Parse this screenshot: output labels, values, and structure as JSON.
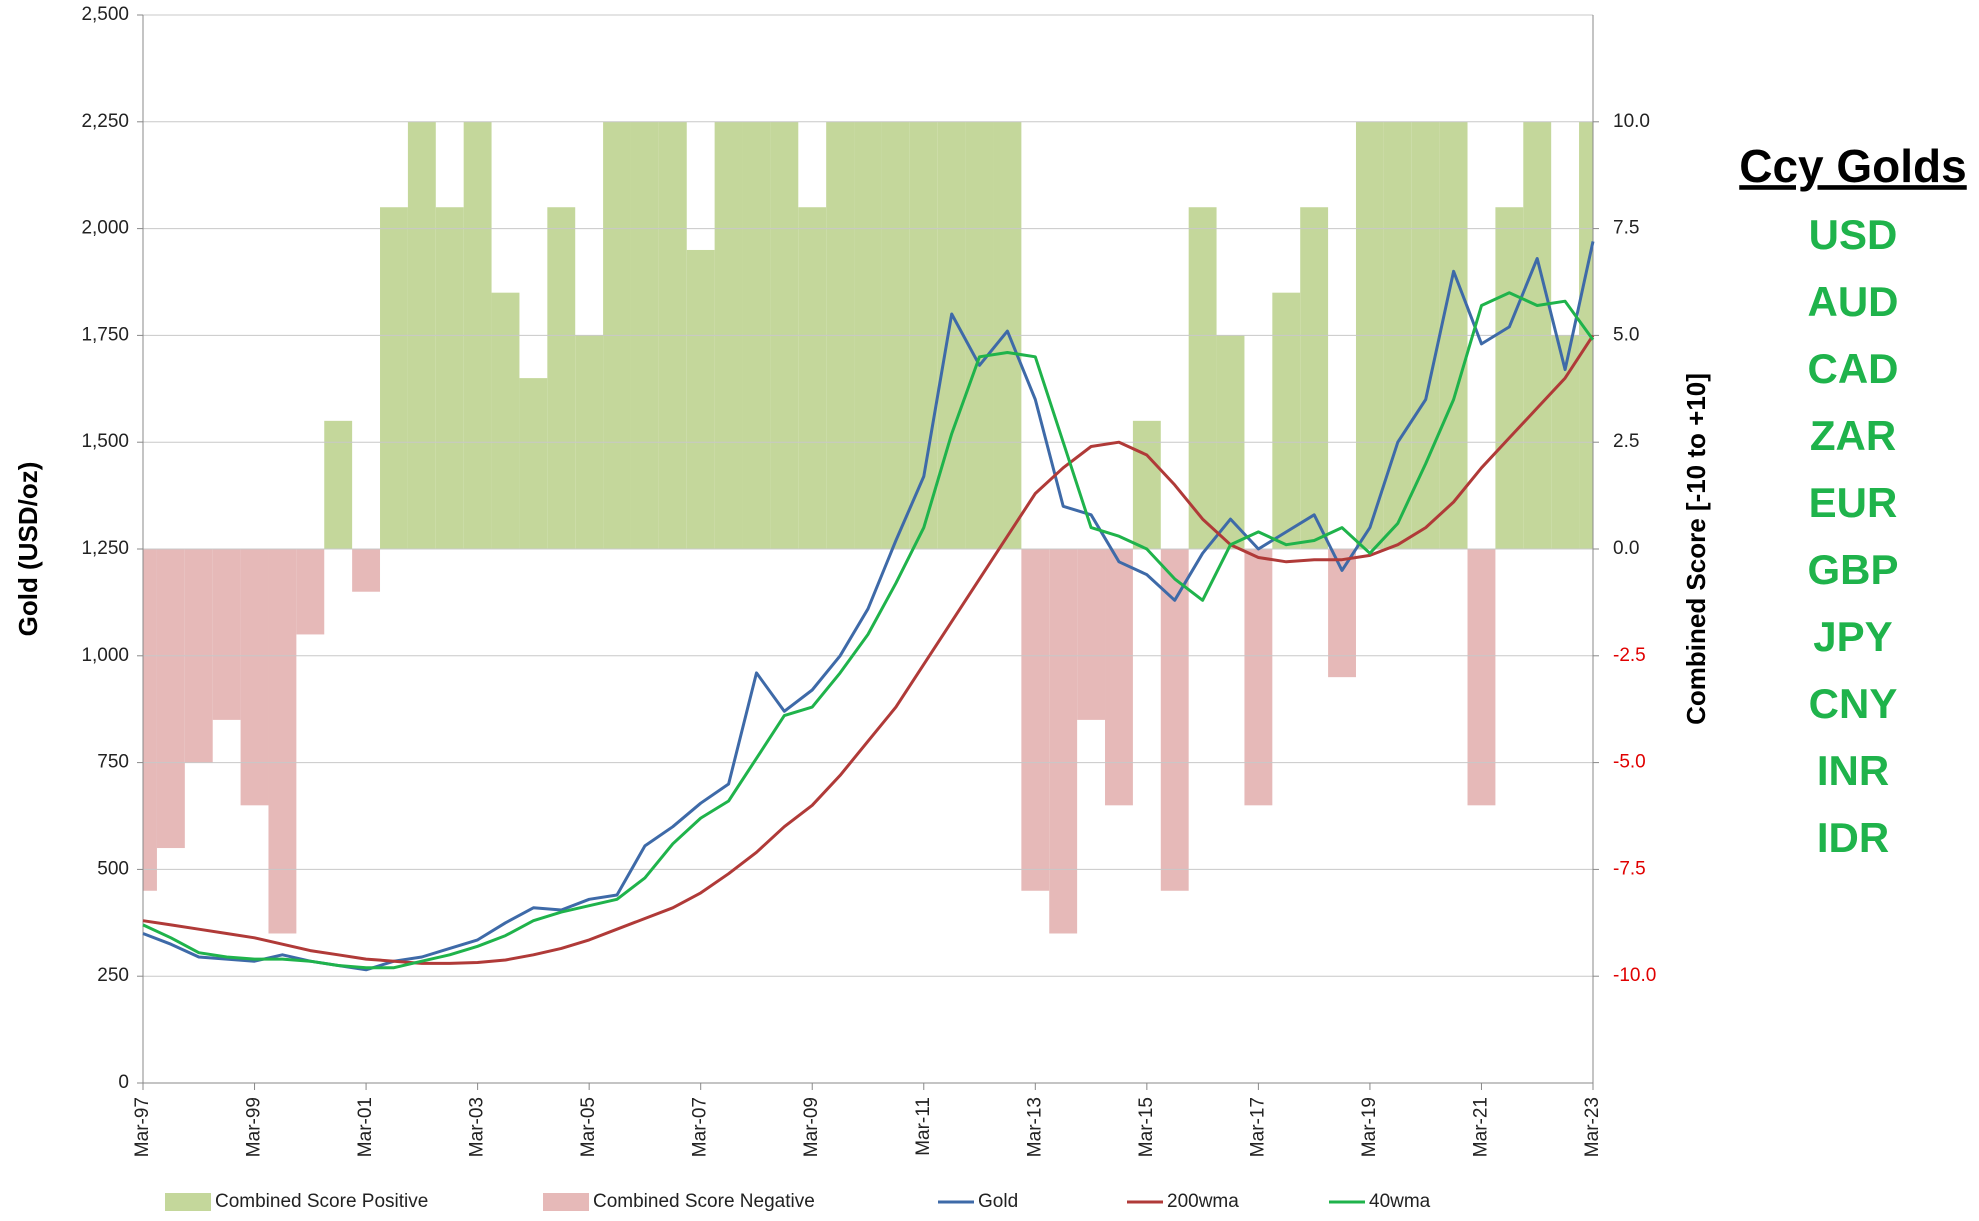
{
  "chart_data": {
    "type": "line",
    "ylabel": "Gold (USD/oz)",
    "y2label": "Combined Score [-10 to +10]",
    "categories": [
      "Mar-97",
      null,
      null,
      null,
      "Mar-99",
      null,
      null,
      null,
      "Mar-01",
      null,
      null,
      null,
      "Mar-03",
      null,
      null,
      null,
      "Mar-05",
      null,
      null,
      null,
      "Mar-07",
      null,
      null,
      null,
      "Mar-09",
      null,
      null,
      null,
      "Mar-11",
      null,
      null,
      null,
      "Mar-13",
      null,
      null,
      null,
      "Mar-15",
      null,
      null,
      null,
      "Mar-17",
      null,
      null,
      null,
      "Mar-19",
      null,
      null,
      null,
      "Mar-21",
      null,
      null,
      null,
      "Mar-23"
    ],
    "ylim": [
      0,
      2500
    ],
    "yticks": [
      0,
      250,
      500,
      750,
      {
        "value": 1000,
        "label": "1,000"
      },
      {
        "value": 1250,
        "label": "1,250"
      },
      {
        "value": 1500,
        "label": "1,500"
      },
      {
        "value": 1750,
        "label": "1,750"
      },
      {
        "value": 2000,
        "label": "2,000"
      },
      {
        "value": 2250,
        "label": "2,250"
      },
      {
        "value": 2500,
        "label": "2,500"
      }
    ],
    "y2lim": [
      -12.5,
      12.5
    ],
    "y2ticks": [
      {
        "value": -10,
        "label": "-10.0"
      },
      {
        "value": -7.5,
        "label": "-7.5"
      },
      {
        "value": -5,
        "label": "-5.0"
      },
      {
        "value": -2.5,
        "label": "-2.5"
      },
      {
        "value": 0,
        "label": "0.0"
      },
      {
        "value": 2.5,
        "label": "2.5"
      },
      {
        "value": 5,
        "label": "5.0"
      },
      {
        "value": 7.5,
        "label": "7.5"
      },
      {
        "value": 10,
        "label": "10.0"
      }
    ],
    "y2_negative_tick_color": "#e00000",
    "grid": true,
    "legend": "bottom",
    "series": [
      {
        "name": "Combined Score Positive",
        "kind": "area",
        "axis": "y2",
        "color": "#c4d79b",
        "values": [
          null,
          null,
          null,
          null,
          null,
          null,
          null,
          3,
          null,
          8,
          10,
          8,
          10,
          6,
          4,
          8,
          5,
          10,
          10,
          10,
          7,
          10,
          10,
          10,
          8,
          10,
          10,
          10,
          10,
          10,
          10,
          10,
          null,
          null,
          null,
          null,
          3,
          null,
          8,
          5,
          null,
          6,
          8,
          null,
          10,
          10,
          10,
          10,
          null,
          8,
          10,
          5,
          10
        ]
      },
      {
        "name": "Combined Score Negative",
        "kind": "area",
        "axis": "y2",
        "color": "#e6b9b8",
        "values": [
          -8,
          -7,
          -5,
          -4,
          -6,
          -9,
          -2,
          null,
          -1,
          null,
          null,
          null,
          null,
          null,
          null,
          null,
          null,
          null,
          null,
          null,
          null,
          null,
          null,
          null,
          null,
          null,
          null,
          null,
          null,
          null,
          null,
          null,
          -8,
          -9,
          -4,
          -6,
          null,
          -8,
          null,
          null,
          -6,
          null,
          null,
          -3,
          null,
          null,
          null,
          null,
          -6,
          null,
          null,
          null,
          null
        ]
      },
      {
        "name": "Gold",
        "kind": "line",
        "color": "#3e6aa8",
        "values": [
          350,
          325,
          295,
          290,
          285,
          300,
          285,
          275,
          265,
          285,
          295,
          315,
          335,
          375,
          410,
          405,
          430,
          440,
          555,
          600,
          655,
          700,
          960,
          870,
          920,
          1000,
          1110,
          1270,
          1420,
          1800,
          1680,
          1760,
          1600,
          1350,
          1330,
          1220,
          1190,
          1130,
          1240,
          1320,
          1250,
          1290,
          1330,
          1200,
          1300,
          1500,
          1600,
          1900,
          1730,
          1770,
          1930,
          1670,
          1970
        ]
      },
      {
        "name": "200wma",
        "kind": "line",
        "color": "#b03a38",
        "values": [
          380,
          370,
          360,
          350,
          340,
          325,
          310,
          300,
          290,
          285,
          280,
          280,
          282,
          288,
          300,
          315,
          335,
          360,
          385,
          410,
          445,
          490,
          540,
          600,
          650,
          720,
          800,
          880,
          980,
          1080,
          1180,
          1280,
          1380,
          1440,
          1490,
          1500,
          1470,
          1400,
          1320,
          1260,
          1230,
          1220,
          1225,
          1225,
          1235,
          1260,
          1300,
          1360,
          1440,
          1510,
          1580,
          1650,
          1750
        ]
      },
      {
        "name": "40wma",
        "kind": "line",
        "color": "#1fb34b",
        "values": [
          370,
          340,
          305,
          295,
          290,
          290,
          285,
          275,
          270,
          270,
          285,
          300,
          320,
          345,
          380,
          400,
          415,
          430,
          480,
          560,
          620,
          660,
          760,
          860,
          880,
          960,
          1050,
          1170,
          1300,
          1520,
          1700,
          1710,
          1700,
          1500,
          1300,
          1280,
          1250,
          1180,
          1130,
          1260,
          1290,
          1260,
          1270,
          1300,
          1240,
          1310,
          1450,
          1600,
          1820,
          1850,
          1820,
          1830,
          1740
        ]
      }
    ]
  },
  "panel": {
    "title": "Ccy Golds",
    "items": [
      "USD",
      "AUD",
      "CAD",
      "ZAR",
      "EUR",
      "GBP",
      "JPY",
      "CNY",
      "INR",
      "IDR"
    ]
  }
}
